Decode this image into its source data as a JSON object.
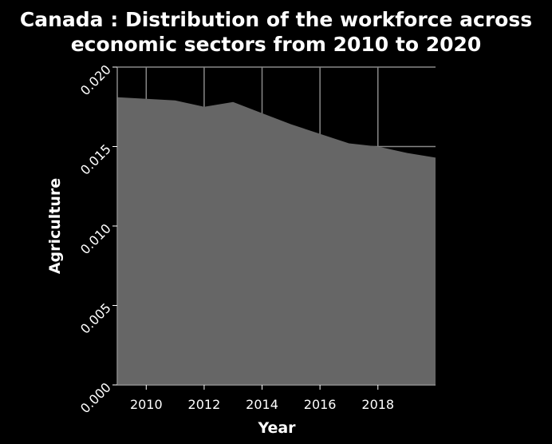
{
  "chart_data": {
    "type": "area",
    "title_lines": [
      "Canada : Distribution of the workforce across",
      "economic sectors from 2010 to 2020"
    ],
    "xlabel": "Year",
    "ylabel": "Agriculture",
    "x": [
      2009,
      2010,
      2011,
      2012,
      2013,
      2014,
      2015,
      2016,
      2017,
      2018,
      2019,
      2019.99
    ],
    "series": [
      {
        "values": [
          0.0181,
          0.018,
          0.0179,
          0.0175,
          0.0178,
          0.0171,
          0.0164,
          0.0158,
          0.0152,
          0.015,
          0.0146,
          0.0143
        ]
      }
    ],
    "xlim": [
      2009,
      2019.99
    ],
    "ylim": [
      0,
      0.02
    ],
    "x_ticks": [
      2010,
      2012,
      2014,
      2016,
      2018
    ],
    "x_tick_labels": [
      "2010",
      "2012",
      "2014",
      "2016",
      "2018"
    ],
    "y_ticks": [
      0,
      0.005,
      0.01,
      0.015,
      0.02
    ],
    "y_tick_labels": [
      "0.000",
      "0.005",
      "0.010",
      "0.015",
      "0.020"
    ],
    "grid": true,
    "colors": {
      "background": "#000000",
      "plot_background": "#000000",
      "area": "#666666",
      "grid": "#888888",
      "text": "#ffffff"
    }
  }
}
